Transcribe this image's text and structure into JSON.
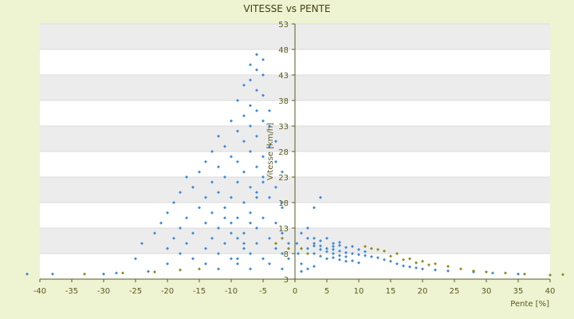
{
  "chart_data": {
    "type": "scatter",
    "title": "VITESSE vs PENTE",
    "xlabel": "Pente [%]",
    "ylabel": "Vitesse [km/h]",
    "xlim": [
      -40,
      40
    ],
    "ylim": [
      3,
      53
    ],
    "x_ticks": [
      "-40",
      "-35",
      "-30",
      "-25",
      "-20",
      "-15",
      "-10",
      "-5",
      "0",
      "5",
      "10",
      "15",
      "20",
      "25",
      "30",
      "35",
      "40"
    ],
    "y_ticks": [
      "3",
      "8",
      "13",
      "18",
      "23",
      "28",
      "33",
      "38",
      "43",
      "48",
      "53"
    ],
    "x_tick_values": [
      -40,
      -35,
      -30,
      -25,
      -20,
      -15,
      -10,
      -5,
      0,
      5,
      10,
      15,
      20,
      25,
      30,
      35,
      40
    ],
    "y_tick_values": [
      3,
      8,
      13,
      18,
      23,
      28,
      33,
      38,
      43,
      48,
      53
    ],
    "grid": "horizontal alternating bands",
    "legend": "none",
    "colors": {
      "series_main": "#3c8ad8",
      "series_secondary": "#8c8c1e",
      "band": "#ececec",
      "plot_bg": "#ffffff",
      "page_bg": "#eef3d2"
    },
    "series": [
      {
        "color": "#3c8ad8",
        "points": [
          [
            -6,
            47
          ],
          [
            -5,
            46
          ],
          [
            -7,
            45
          ],
          [
            -6,
            44
          ],
          [
            -5,
            43
          ],
          [
            -7,
            42
          ],
          [
            -8,
            41
          ],
          [
            -6,
            40
          ],
          [
            -5,
            39
          ],
          [
            -9,
            38
          ],
          [
            -7,
            37
          ],
          [
            -6,
            36
          ],
          [
            -4,
            36
          ],
          [
            -8,
            35
          ],
          [
            -10,
            34
          ],
          [
            -5,
            34
          ],
          [
            -7,
            33
          ],
          [
            -9,
            32
          ],
          [
            -12,
            31
          ],
          [
            -6,
            31
          ],
          [
            -8,
            30
          ],
          [
            -11,
            29
          ],
          [
            -4,
            29
          ],
          [
            -13,
            28
          ],
          [
            -7,
            28
          ],
          [
            -10,
            27
          ],
          [
            -5,
            27
          ],
          [
            -14,
            26
          ],
          [
            -9,
            26
          ],
          [
            -3,
            26
          ],
          [
            -12,
            25
          ],
          [
            -6,
            25
          ],
          [
            -15,
            24
          ],
          [
            -8,
            24
          ],
          [
            -2,
            24
          ],
          [
            -11,
            23
          ],
          [
            -17,
            23
          ],
          [
            -5,
            23
          ],
          [
            -13,
            22
          ],
          [
            -9,
            22
          ],
          [
            -16,
            21
          ],
          [
            -7,
            21
          ],
          [
            -3,
            21
          ],
          [
            -12,
            20
          ],
          [
            -18,
            20
          ],
          [
            -6,
            20
          ],
          [
            -14,
            19
          ],
          [
            -10,
            19
          ],
          [
            -4,
            19
          ],
          [
            -19,
            18
          ],
          [
            -8,
            18
          ],
          [
            -15,
            17
          ],
          [
            -11,
            17
          ],
          [
            -2,
            17
          ],
          [
            -20,
            16
          ],
          [
            -13,
            16
          ],
          [
            -7,
            16
          ],
          [
            -17,
            15
          ],
          [
            -9,
            15
          ],
          [
            -5,
            15
          ],
          [
            -21,
            14
          ],
          [
            -14,
            14
          ],
          [
            -10,
            14
          ],
          [
            -3,
            14
          ],
          [
            -18,
            13
          ],
          [
            -12,
            13
          ],
          [
            -6,
            13
          ],
          [
            -22,
            12
          ],
          [
            -16,
            12
          ],
          [
            -8,
            12
          ],
          [
            -2,
            12
          ],
          [
            -19,
            11
          ],
          [
            -13,
            11
          ],
          [
            -9,
            11
          ],
          [
            -4,
            11
          ],
          [
            -24,
            10
          ],
          [
            -17,
            10
          ],
          [
            -11,
            10
          ],
          [
            -6,
            10
          ],
          [
            -1,
            10
          ],
          [
            -20,
            9
          ],
          [
            -14,
            9
          ],
          [
            -8,
            9
          ],
          [
            -3,
            9
          ],
          [
            -18,
            8
          ],
          [
            -12,
            8
          ],
          [
            -7,
            8
          ],
          [
            -2,
            8
          ],
          [
            -16,
            7
          ],
          [
            -10,
            7
          ],
          [
            -5,
            7
          ],
          [
            -1,
            7
          ],
          [
            -14,
            6
          ],
          [
            -9,
            6
          ],
          [
            -4,
            6
          ],
          [
            -12,
            5
          ],
          [
            -7,
            5
          ],
          [
            -2,
            5
          ],
          [
            -20,
            6
          ],
          [
            -25,
            7
          ],
          [
            -5,
            22
          ],
          [
            -6,
            19
          ],
          [
            -7,
            14
          ],
          [
            -8,
            10
          ],
          [
            -9,
            7
          ],
          [
            -10,
            12
          ],
          [
            -11,
            15
          ],
          [
            -4,
            33
          ],
          [
            -3,
            30
          ],
          [
            -2,
            18
          ],
          [
            1,
            12
          ],
          [
            2,
            11
          ],
          [
            3,
            10
          ],
          [
            4,
            9.5
          ],
          [
            5,
            9
          ],
          [
            6,
            8.8
          ],
          [
            7,
            8.5
          ],
          [
            8,
            8.2
          ],
          [
            9,
            8
          ],
          [
            10,
            7.8
          ],
          [
            11,
            7.6
          ],
          [
            12,
            7.4
          ],
          [
            3,
            8
          ],
          [
            4,
            7.5
          ],
          [
            5,
            7
          ],
          [
            6,
            7.2
          ],
          [
            7,
            6.8
          ],
          [
            8,
            6.5
          ],
          [
            9,
            6.6
          ],
          [
            10,
            6.2
          ],
          [
            2,
            9
          ],
          [
            3,
            9.5
          ],
          [
            4,
            10.5
          ],
          [
            5,
            11
          ],
          [
            6,
            10
          ],
          [
            7,
            9.6
          ],
          [
            8,
            9.2
          ],
          [
            9,
            9.4
          ],
          [
            10,
            8.8
          ],
          [
            11,
            8.4
          ],
          [
            13,
            7.2
          ],
          [
            14,
            6.8
          ],
          [
            15,
            6.5
          ],
          [
            16,
            6
          ],
          [
            17,
            5.6
          ],
          [
            18,
            5.4
          ],
          [
            19,
            5.2
          ],
          [
            20,
            5
          ],
          [
            22,
            4.8
          ],
          [
            24,
            4.6
          ],
          [
            6,
            8
          ],
          [
            7,
            7.6
          ],
          [
            8,
            7.4
          ],
          [
            5,
            8.4
          ],
          [
            4,
            8.8
          ],
          [
            6,
            9.4
          ],
          [
            7,
            10.2
          ],
          [
            3,
            11
          ],
          [
            2,
            13
          ],
          [
            3,
            17
          ],
          [
            4,
            19
          ],
          [
            1,
            6
          ],
          [
            2,
            5
          ],
          [
            3,
            5.5
          ],
          [
            1,
            4.5
          ],
          [
            0.5,
            8
          ],
          [
            0.3,
            10
          ],
          [
            28,
            4.4
          ],
          [
            31,
            4.2
          ],
          [
            35,
            4
          ],
          [
            -38,
            4
          ],
          [
            -42,
            4
          ],
          [
            -30,
            4
          ],
          [
            -28,
            4.2
          ],
          [
            -23,
            4.5
          ]
        ]
      },
      {
        "color": "#8c8c1e",
        "points": [
          [
            -33,
            4
          ],
          [
            -27,
            4.2
          ],
          [
            -22,
            4.4
          ],
          [
            -18,
            4.8
          ],
          [
            -15,
            5
          ],
          [
            -3,
            10
          ],
          [
            -2,
            11
          ],
          [
            -1,
            9
          ],
          [
            1,
            9
          ],
          [
            2,
            8
          ],
          [
            12,
            9
          ],
          [
            14,
            8.5
          ],
          [
            16,
            8
          ],
          [
            18,
            7
          ],
          [
            20,
            6.5
          ],
          [
            22,
            6
          ],
          [
            24,
            5.5
          ],
          [
            26,
            5
          ],
          [
            28,
            4.6
          ],
          [
            30,
            4.4
          ],
          [
            33,
            4.2
          ],
          [
            36,
            4
          ],
          [
            40,
            3.8
          ],
          [
            42,
            3.9
          ],
          [
            15,
            7.5
          ],
          [
            17,
            6.8
          ],
          [
            19,
            6.2
          ],
          [
            21,
            5.8
          ],
          [
            13,
            8.8
          ],
          [
            11,
            9.4
          ]
        ]
      }
    ]
  }
}
